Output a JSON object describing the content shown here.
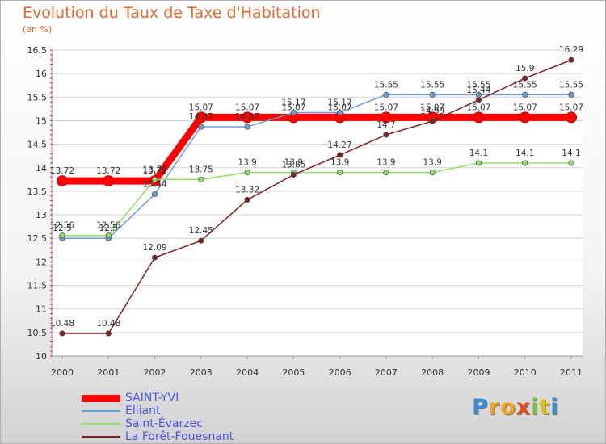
{
  "chart_data": {
    "type": "line",
    "title": "Evolution du Taux de Taxe d'Habitation",
    "subtitle": "(en %)",
    "x": [
      "2000",
      "2001",
      "2002",
      "2003",
      "2004",
      "2005",
      "2006",
      "2007",
      "2008",
      "2009",
      "2010",
      "2011"
    ],
    "ylim": [
      10,
      16.5
    ],
    "yticks": [
      "10",
      "10.5",
      "11",
      "11.5",
      "12",
      "12.5",
      "13",
      "13.5",
      "14",
      "14.5",
      "15",
      "15.5",
      "16",
      "16.5"
    ],
    "grid": "horizontal",
    "legend_position": "bottom-left",
    "series": [
      {
        "name": "SAINT-YVI",
        "color": "#ff0000",
        "style": "thick",
        "values": [
          13.72,
          13.72,
          13.72,
          15.07,
          15.07,
          15.07,
          15.07,
          15.07,
          15.07,
          15.07,
          15.07,
          15.07
        ],
        "labels": [
          "13.72",
          "13.72",
          "13.72",
          "15.07",
          "15.07",
          "15.07",
          "15.07",
          "15.07",
          "15.07",
          "15.07",
          "15.07",
          "15.07"
        ]
      },
      {
        "name": "Elliant",
        "color": "#6e9fd2",
        "style": "thin",
        "values": [
          12.5,
          12.5,
          13.44,
          14.87,
          14.87,
          15.17,
          15.17,
          15.55,
          15.55,
          15.55,
          15.55,
          15.55
        ],
        "labels": [
          "12.5",
          "12.5",
          "13.44",
          "14.87",
          "14.87",
          "15.17",
          "15.17",
          "15.55",
          "15.55",
          "15.55",
          "15.55",
          "15.55"
        ]
      },
      {
        "name": "Saint-Évarzec",
        "color": "#92df6a",
        "style": "thin",
        "values": [
          12.56,
          12.56,
          13.75,
          13.75,
          13.9,
          13.9,
          13.9,
          13.9,
          13.9,
          14.1,
          14.1,
          14.1
        ],
        "labels": [
          "12.56",
          "12.56",
          "13.75",
          "13.75",
          "13.9",
          "13.9",
          "13.9",
          "13.9",
          "13.9",
          "14.1",
          "14.1",
          "14.1"
        ]
      },
      {
        "name": "La Forêt-Fouesnant",
        "color": "#7a2222",
        "style": "thin",
        "values": [
          10.48,
          10.48,
          12.09,
          12.45,
          13.32,
          13.85,
          14.27,
          14.7,
          14.99,
          15.44,
          15.9,
          16.29
        ],
        "labels": [
          "10.48",
          "10.48",
          "12.09",
          "12.45",
          "13.32",
          "13.85",
          "14.27",
          "14.7",
          "14.99",
          "15.44",
          "15.9",
          "16.29"
        ]
      }
    ]
  },
  "brand": {
    "name": "Proxiti",
    "letters": [
      "P",
      "r",
      "o",
      "x",
      "i",
      "t",
      "i"
    ],
    "colors": [
      "#3a8ed6",
      "#f1a11e",
      "#f1a11e",
      "#e54a1f",
      "#7cbf3a",
      "#d8c21a",
      "#3a8ed6"
    ]
  }
}
